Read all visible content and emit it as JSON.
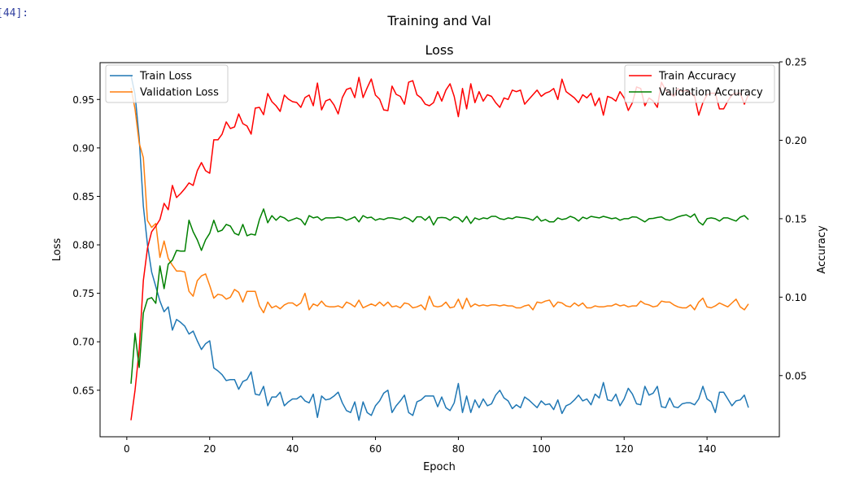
{
  "cell": {
    "prompt": "[44]:"
  },
  "chart_data": {
    "type": "line",
    "suptitle": "Training and Val",
    "title": "Loss",
    "xlabel": "Epoch",
    "ylabel": "Loss",
    "ylabel_right": "Accuracy",
    "xlim": [
      -6.45,
      157.45
    ],
    "ylim": [
      0.602,
      0.988
    ],
    "ylim_right": [
      0.011,
      0.2495
    ],
    "xticks": [
      0,
      20,
      40,
      60,
      80,
      100,
      120,
      140
    ],
    "xtick_labels": [
      "0",
      "20",
      "40",
      "60",
      "80",
      "100",
      "120",
      "140"
    ],
    "yticks": [
      0.65,
      0.7,
      0.75,
      0.8,
      0.85,
      0.9,
      0.95
    ],
    "ytick_labels": [
      "0.65",
      "0.70",
      "0.75",
      "0.80",
      "0.85",
      "0.90",
      "0.95"
    ],
    "yticks_right": [
      0.05,
      0.1,
      0.15,
      0.2,
      0.25
    ],
    "ytick_labels_right": [
      "0.05",
      "0.10",
      "0.15",
      "0.20",
      "0.25"
    ],
    "grid": false,
    "legend_left": {
      "placement": "upper-left",
      "entries": [
        "Train Loss",
        "Validation Loss"
      ]
    },
    "legend_right": {
      "placement": "upper-right",
      "entries": [
        "Train Accuracy",
        "Validation Accuracy"
      ]
    },
    "x_start": 1,
    "series": [
      {
        "name": "Train Loss",
        "axis": "left",
        "color": "#1f77b4",
        "values": [
          0.975,
          0.955,
          0.91,
          0.84,
          0.8,
          0.772,
          0.757,
          0.742,
          0.731,
          0.736,
          0.712,
          0.723,
          0.72,
          0.716,
          0.708,
          0.711,
          0.701,
          0.692,
          0.698,
          0.701,
          0.673,
          0.67,
          0.666,
          0.66,
          0.661,
          0.661,
          0.651,
          0.659,
          0.661,
          0.669,
          0.646,
          0.645,
          0.654,
          0.634,
          0.643,
          0.643,
          0.648,
          0.634,
          0.638,
          0.641,
          0.641,
          0.644,
          0.639,
          0.637,
          0.646,
          0.622,
          0.644,
          0.64,
          0.641,
          0.644,
          0.648,
          0.637,
          0.629,
          0.627,
          0.638,
          0.619,
          0.638,
          0.627,
          0.624,
          0.634,
          0.639,
          0.647,
          0.65,
          0.627,
          0.634,
          0.639,
          0.645,
          0.627,
          0.624,
          0.638,
          0.64,
          0.644,
          0.644,
          0.644,
          0.633,
          0.643,
          0.632,
          0.629,
          0.637,
          0.657,
          0.627,
          0.644,
          0.627,
          0.64,
          0.632,
          0.641,
          0.634,
          0.636,
          0.645,
          0.65,
          0.642,
          0.639,
          0.631,
          0.635,
          0.632,
          0.643,
          0.64,
          0.636,
          0.632,
          0.639,
          0.635,
          0.636,
          0.63,
          0.64,
          0.626,
          0.634,
          0.636,
          0.64,
          0.645,
          0.639,
          0.641,
          0.635,
          0.646,
          0.642,
          0.658,
          0.64,
          0.639,
          0.646,
          0.634,
          0.641,
          0.652,
          0.646,
          0.636,
          0.635,
          0.654,
          0.645,
          0.647,
          0.654,
          0.633,
          0.632,
          0.642,
          0.633,
          0.632,
          0.636,
          0.637,
          0.637,
          0.635,
          0.641,
          0.654,
          0.641,
          0.638,
          0.627,
          0.648,
          0.648,
          0.641,
          0.634,
          0.639,
          0.64,
          0.645,
          0.632
        ]
      },
      {
        "name": "Validation Loss",
        "axis": "left",
        "color": "#ff7f0e",
        "values": [
          0.962,
          0.94,
          0.905,
          0.89,
          0.825,
          0.818,
          0.822,
          0.787,
          0.804,
          0.786,
          0.779,
          0.773,
          0.773,
          0.772,
          0.752,
          0.747,
          0.763,
          0.768,
          0.77,
          0.758,
          0.745,
          0.749,
          0.748,
          0.744,
          0.746,
          0.754,
          0.751,
          0.741,
          0.752,
          0.752,
          0.752,
          0.737,
          0.73,
          0.741,
          0.735,
          0.737,
          0.734,
          0.738,
          0.74,
          0.74,
          0.737,
          0.74,
          0.75,
          0.733,
          0.739,
          0.737,
          0.742,
          0.737,
          0.736,
          0.736,
          0.737,
          0.735,
          0.741,
          0.739,
          0.736,
          0.743,
          0.735,
          0.737,
          0.739,
          0.737,
          0.741,
          0.737,
          0.741,
          0.736,
          0.737,
          0.735,
          0.74,
          0.739,
          0.735,
          0.736,
          0.738,
          0.733,
          0.747,
          0.737,
          0.736,
          0.737,
          0.741,
          0.735,
          0.736,
          0.744,
          0.734,
          0.745,
          0.736,
          0.739,
          0.737,
          0.738,
          0.737,
          0.738,
          0.738,
          0.737,
          0.738,
          0.737,
          0.737,
          0.735,
          0.735,
          0.737,
          0.738,
          0.733,
          0.741,
          0.74,
          0.742,
          0.743,
          0.736,
          0.741,
          0.74,
          0.737,
          0.736,
          0.74,
          0.737,
          0.74,
          0.735,
          0.735,
          0.737,
          0.736,
          0.736,
          0.737,
          0.737,
          0.739,
          0.737,
          0.738,
          0.736,
          0.737,
          0.737,
          0.742,
          0.739,
          0.738,
          0.736,
          0.737,
          0.742,
          0.741,
          0.741,
          0.738,
          0.736,
          0.735,
          0.735,
          0.738,
          0.733,
          0.741,
          0.745,
          0.736,
          0.735,
          0.737,
          0.74,
          0.738,
          0.736,
          0.74,
          0.744,
          0.736,
          0.733,
          0.739
        ]
      },
      {
        "name": "Train Accuracy",
        "axis": "right",
        "color": "#ff0000",
        "values": [
          0.0215,
          0.0407,
          0.0666,
          0.1106,
          0.1313,
          0.1417,
          0.1453,
          0.1495,
          0.1598,
          0.1557,
          0.1712,
          0.1635,
          0.1661,
          0.1692,
          0.1728,
          0.1712,
          0.1806,
          0.1858,
          0.1806,
          0.179,
          0.2003,
          0.2003,
          0.2039,
          0.2117,
          0.2075,
          0.2085,
          0.2168,
          0.2106,
          0.2091,
          0.2039,
          0.2205,
          0.221,
          0.2163,
          0.2298,
          0.2246,
          0.222,
          0.2184,
          0.2288,
          0.2262,
          0.2246,
          0.2241,
          0.221,
          0.2272,
          0.2288,
          0.222,
          0.2365,
          0.2194,
          0.2251,
          0.2262,
          0.2225,
          0.2168,
          0.2272,
          0.2324,
          0.2334,
          0.2272,
          0.2401,
          0.2272,
          0.2334,
          0.2391,
          0.2288,
          0.2262,
          0.2194,
          0.2189,
          0.2345,
          0.2293,
          0.228,
          0.223,
          0.237,
          0.238,
          0.229,
          0.227,
          0.223,
          0.222,
          0.224,
          0.231,
          0.225,
          0.232,
          0.236,
          0.228,
          0.215,
          0.233,
          0.22,
          0.236,
          0.224,
          0.231,
          0.225,
          0.229,
          0.228,
          0.224,
          0.221,
          0.227,
          0.226,
          0.232,
          0.231,
          0.232,
          0.223,
          0.226,
          0.229,
          0.232,
          0.228,
          0.23,
          0.231,
          0.233,
          0.226,
          0.239,
          0.231,
          0.229,
          0.227,
          0.224,
          0.229,
          0.227,
          0.23,
          0.222,
          0.227,
          0.216,
          0.228,
          0.227,
          0.225,
          0.231,
          0.227,
          0.219,
          0.224,
          0.234,
          0.233,
          0.222,
          0.227,
          0.225,
          0.221,
          0.237,
          0.232,
          0.23,
          0.228,
          0.233,
          0.231,
          0.232,
          0.23,
          0.228,
          0.216,
          0.224,
          0.229,
          0.23,
          0.23,
          0.22,
          0.22,
          0.225,
          0.229,
          0.23,
          0.23,
          0.223,
          0.229
        ]
      },
      {
        "name": "Validation Accuracy",
        "axis": "right",
        "color": "#008000",
        "values": [
          0.0448,
          0.0769,
          0.0552,
          0.0899,
          0.0987,
          0.0997,
          0.0961,
          0.1199,
          0.1054,
          0.121,
          0.1236,
          0.1298,
          0.1293,
          0.1293,
          0.149,
          0.1417,
          0.1365,
          0.1298,
          0.1365,
          0.1407,
          0.149,
          0.1417,
          0.1427,
          0.1464,
          0.1453,
          0.1407,
          0.1396,
          0.1464,
          0.1391,
          0.1402,
          0.1396,
          0.1495,
          0.1562,
          0.1474,
          0.152,
          0.149,
          0.1515,
          0.1505,
          0.1485,
          0.1495,
          0.1505,
          0.1495,
          0.146,
          0.152,
          0.1505,
          0.1512,
          0.149,
          0.1505,
          0.1505,
          0.1505,
          0.151,
          0.1505,
          0.149,
          0.15,
          0.1512,
          0.148,
          0.152,
          0.1505,
          0.151,
          0.149,
          0.15,
          0.1495,
          0.1505,
          0.1505,
          0.15,
          0.1495,
          0.151,
          0.15,
          0.148,
          0.1512,
          0.1512,
          0.149,
          0.1515,
          0.146,
          0.1505,
          0.1508,
          0.1505,
          0.149,
          0.1512,
          0.1505,
          0.148,
          0.1515,
          0.147,
          0.1505,
          0.1495,
          0.1505,
          0.15,
          0.1515,
          0.1515,
          0.15,
          0.1495,
          0.1505,
          0.15,
          0.1512,
          0.1508,
          0.1505,
          0.15,
          0.149,
          0.1515,
          0.1485,
          0.1495,
          0.148,
          0.148,
          0.1505,
          0.1495,
          0.15,
          0.1515,
          0.1505,
          0.1485,
          0.151,
          0.15,
          0.1515,
          0.151,
          0.1505,
          0.1515,
          0.1508,
          0.15,
          0.1505,
          0.149,
          0.15,
          0.15,
          0.1512,
          0.151,
          0.1495,
          0.148,
          0.15,
          0.1502,
          0.1508,
          0.1512,
          0.1495,
          0.149,
          0.15,
          0.1512,
          0.152,
          0.1525,
          0.151,
          0.153,
          0.148,
          0.146,
          0.15,
          0.1505,
          0.15,
          0.1485,
          0.1505,
          0.1505,
          0.1495,
          0.1485,
          0.151,
          0.152,
          0.1495
        ]
      }
    ]
  }
}
